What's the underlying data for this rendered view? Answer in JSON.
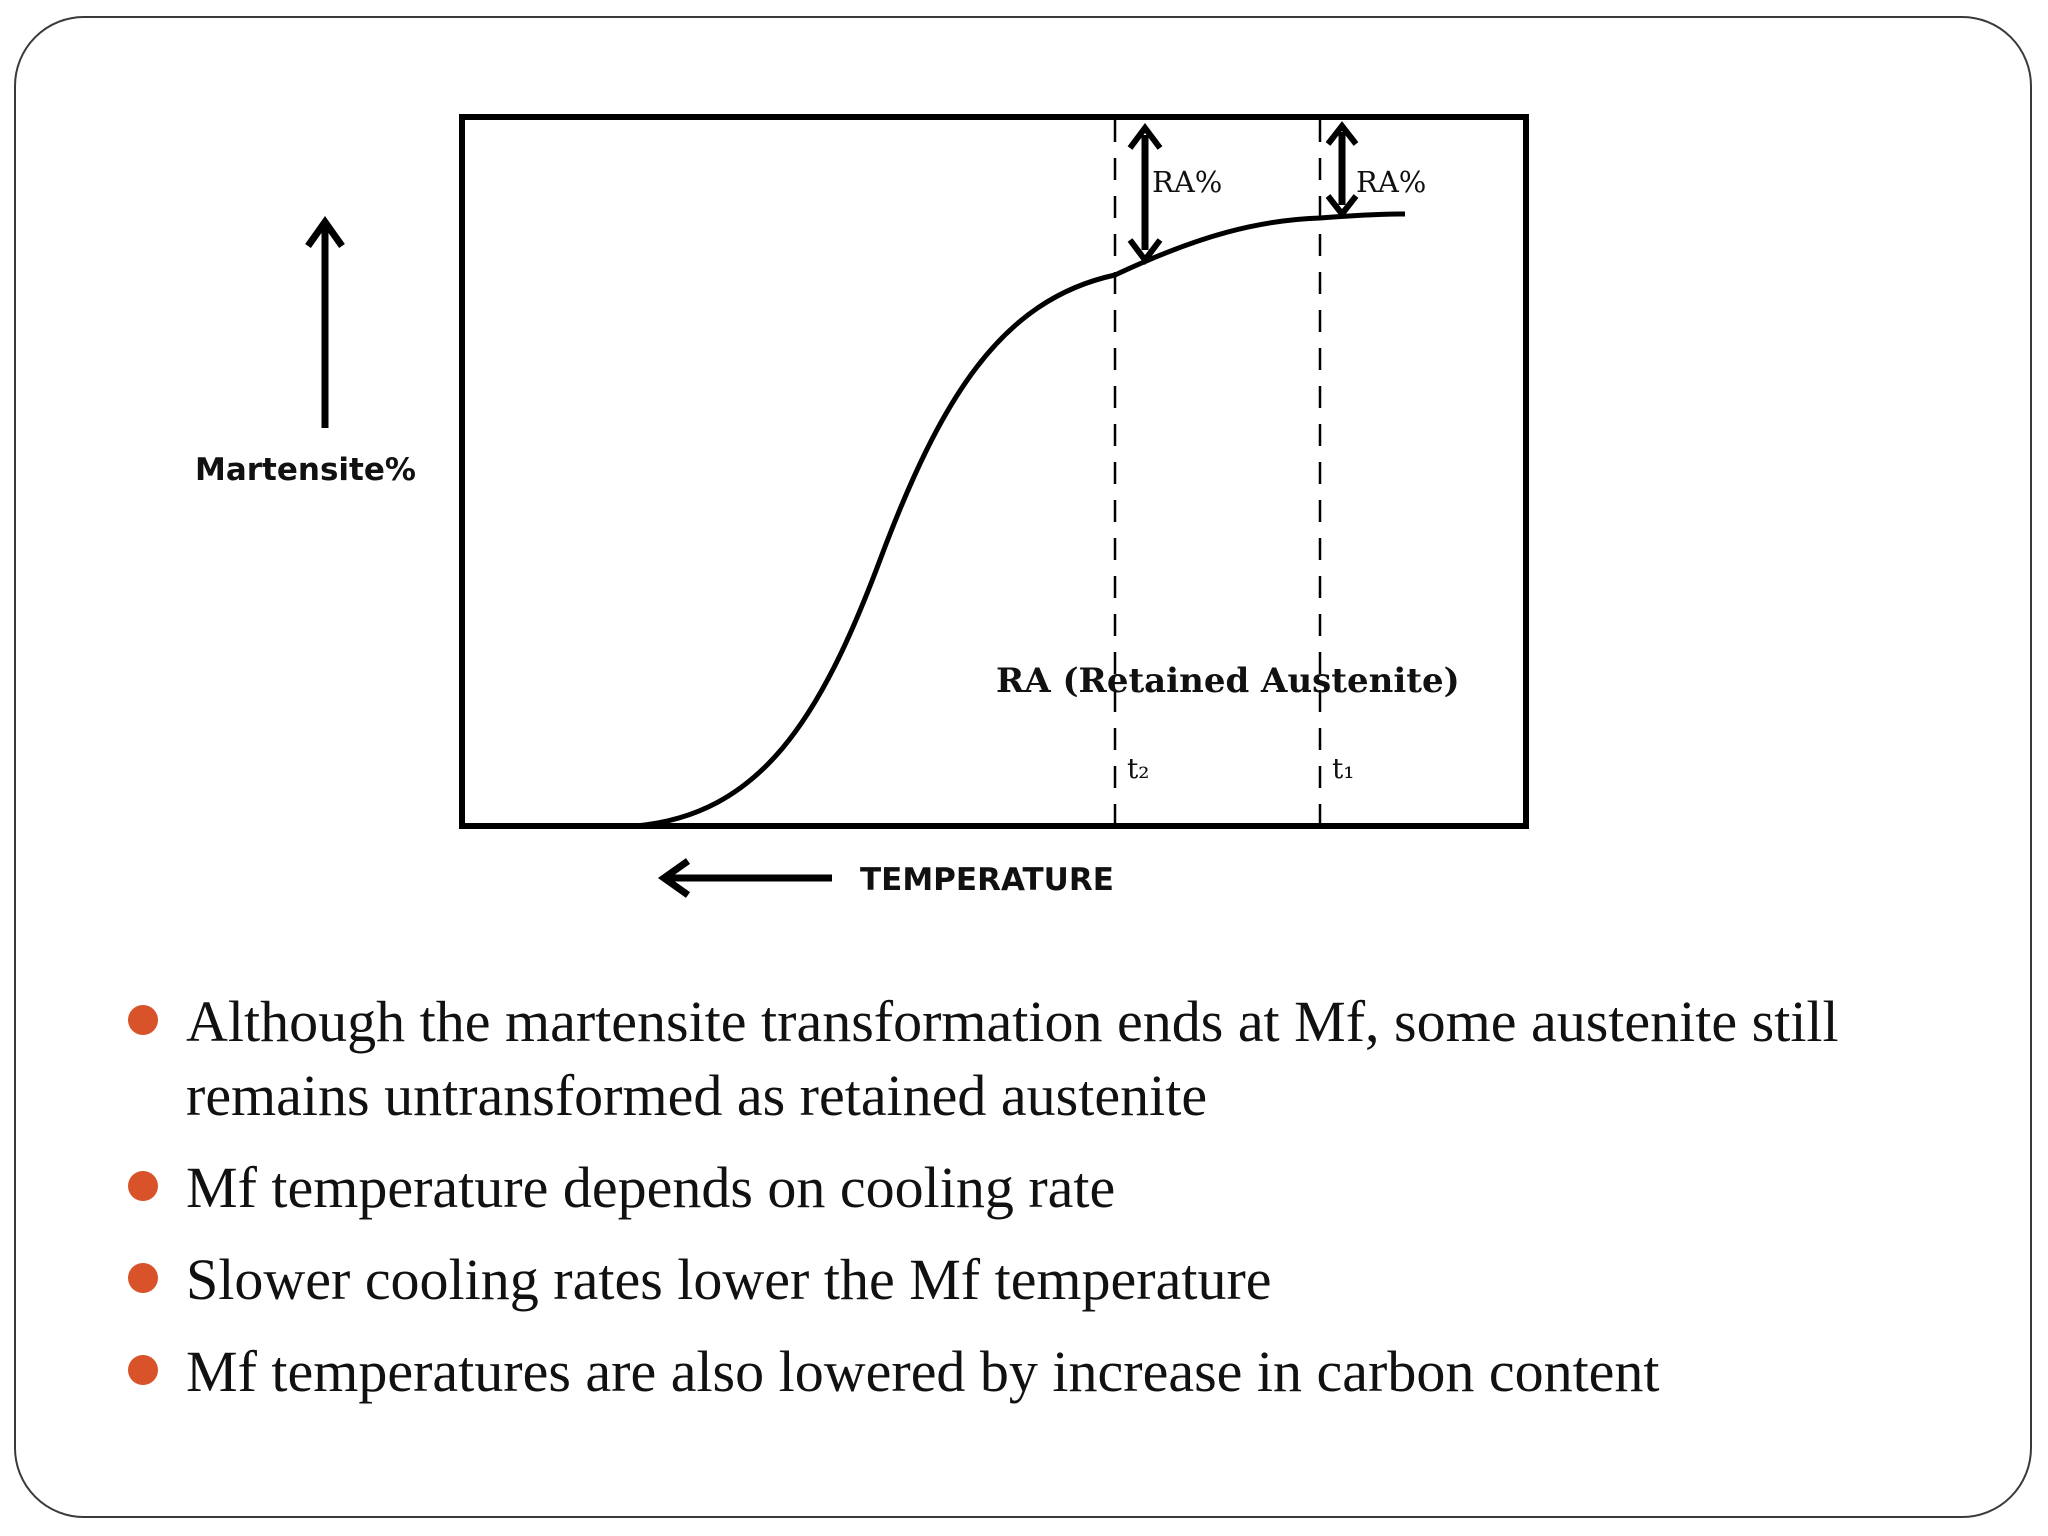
{
  "figure": {
    "y_axis_label": "Martensite%",
    "x_axis_label": "TEMPERATURE",
    "ra_marker_1": "RA%",
    "ra_marker_2": "RA%",
    "region_label": "RA (Retained  Austenite)",
    "time_marker_t2": "t₂",
    "time_marker_t1": "t₁"
  },
  "bullets": [
    {
      "text": "Although the martensite transformation ends at Mf, some austenite still remains untransformed as retained austenite"
    },
    {
      "text": "Mf temperature depends on cooling rate"
    },
    {
      "text": "Slower cooling rates lower the Mf temperature"
    },
    {
      "text": "Mf temperatures are also lowered by increase in carbon content"
    }
  ],
  "colors": {
    "bullet": "#d8522a",
    "ink": "#111111"
  }
}
